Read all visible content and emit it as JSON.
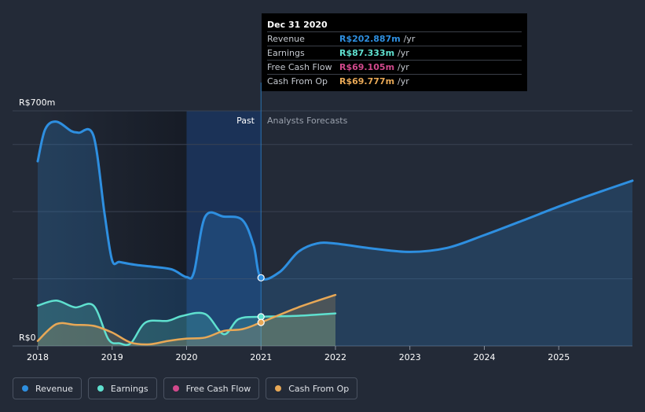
{
  "chart_data": {
    "type": "line",
    "y_axis": {
      "top_label": "R$700m",
      "bottom_label": "R$0",
      "ylim": [
        0,
        700
      ]
    },
    "x_axis": {
      "ticks": [
        "2018",
        "2019",
        "2020",
        "2021",
        "2022",
        "2023",
        "2024",
        "2025"
      ],
      "xlim": [
        2018,
        2025.99
      ]
    },
    "regions": {
      "past_label": "Past",
      "forecast_label": "Analysts Forecasts",
      "divider_x": 2021.0,
      "highlight_start_x": 2020.0
    },
    "series": [
      {
        "name": "Revenue",
        "color": "#2e8fe0",
        "points": [
          [
            2018,
            550
          ],
          [
            2018.1,
            645
          ],
          [
            2018.25,
            668
          ],
          [
            2018.45,
            640
          ],
          [
            2018.55,
            635
          ],
          [
            2018.75,
            625
          ],
          [
            2018.9,
            390
          ],
          [
            2019.0,
            255
          ],
          [
            2019.1,
            250
          ],
          [
            2019.3,
            242
          ],
          [
            2019.5,
            237
          ],
          [
            2019.8,
            228
          ],
          [
            2020.0,
            205
          ],
          [
            2020.1,
            220
          ],
          [
            2020.25,
            385
          ],
          [
            2020.5,
            385
          ],
          [
            2020.75,
            375
          ],
          [
            2020.9,
            300
          ],
          [
            2021.0,
            203
          ],
          [
            2021.25,
            220
          ],
          [
            2021.5,
            280
          ],
          [
            2021.75,
            305
          ],
          [
            2022.0,
            305
          ],
          [
            2022.5,
            290
          ],
          [
            2023.0,
            280
          ],
          [
            2023.5,
            292
          ],
          [
            2024.0,
            330
          ],
          [
            2024.5,
            372
          ],
          [
            2025.0,
            415
          ],
          [
            2025.5,
            455
          ],
          [
            2025.99,
            492
          ]
        ]
      },
      {
        "name": "Earnings",
        "color": "#5fe0cf",
        "points": [
          [
            2018,
            120
          ],
          [
            2018.25,
            135
          ],
          [
            2018.5,
            115
          ],
          [
            2018.75,
            120
          ],
          [
            2018.95,
            20
          ],
          [
            2019.1,
            8
          ],
          [
            2019.25,
            8
          ],
          [
            2019.45,
            70
          ],
          [
            2019.75,
            75
          ],
          [
            2019.95,
            90
          ],
          [
            2020.25,
            95
          ],
          [
            2020.5,
            35
          ],
          [
            2020.7,
            80
          ],
          [
            2021.0,
            87
          ],
          [
            2021.5,
            90
          ],
          [
            2022.0,
            97
          ]
        ]
      },
      {
        "name": "Free Cash Flow",
        "color": "#d1498c",
        "points": []
      },
      {
        "name": "Cash From Op",
        "color": "#e8a856",
        "points": [
          [
            2018,
            15
          ],
          [
            2018.25,
            65
          ],
          [
            2018.5,
            63
          ],
          [
            2018.75,
            60
          ],
          [
            2019.0,
            40
          ],
          [
            2019.25,
            10
          ],
          [
            2019.5,
            5
          ],
          [
            2019.75,
            15
          ],
          [
            2020.0,
            22
          ],
          [
            2020.25,
            25
          ],
          [
            2020.5,
            45
          ],
          [
            2020.75,
            50
          ],
          [
            2021.0,
            70
          ],
          [
            2021.5,
            115
          ],
          [
            2022.0,
            152
          ]
        ]
      }
    ]
  },
  "tooltip": {
    "date": "Dec 31 2020",
    "rows": [
      {
        "label": "Revenue",
        "value": "R$202.887m",
        "unit": "/yr",
        "color": "#2e8fe0"
      },
      {
        "label": "Earnings",
        "value": "R$87.333m",
        "unit": "/yr",
        "color": "#5fe0cf"
      },
      {
        "label": "Free Cash Flow",
        "value": "R$69.105m",
        "unit": "/yr",
        "color": "#d1498c"
      },
      {
        "label": "Cash From Op",
        "value": "R$69.777m",
        "unit": "/yr",
        "color": "#e8a856"
      }
    ]
  },
  "legend": [
    {
      "label": "Revenue",
      "color": "#2e8fe0"
    },
    {
      "label": "Earnings",
      "color": "#5fe0cf"
    },
    {
      "label": "Free Cash Flow",
      "color": "#d1498c"
    },
    {
      "label": "Cash From Op",
      "color": "#e8a856"
    }
  ]
}
